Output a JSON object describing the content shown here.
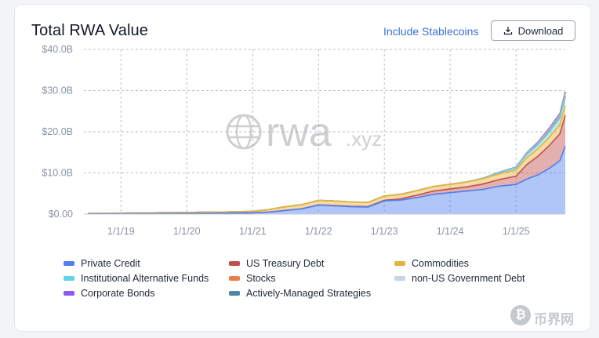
{
  "header": {
    "title": "Total RWA Value",
    "stablecoin_toggle": "Include Stablecoins",
    "download_label": "Download"
  },
  "watermark": {
    "brand": "rwa",
    "tld": ".xyz",
    "corner_badge": "₿",
    "corner_text": "币界网"
  },
  "colors": {
    "private_credit": "#4f7ef0",
    "us_treasury": "#c0504d",
    "commodities": "#e6b23c",
    "inst_alt_funds": "#5fd3ea",
    "stocks": "#ee7d4c",
    "non_us_gov": "#c9d3e6",
    "corporate_bonds": "#8a5cf6",
    "active_managed": "#4e88a6",
    "link": "#3b6fd6"
  },
  "chart_data": {
    "type": "area",
    "stacked": true,
    "title": "Total RWA Value",
    "x_ticks": [
      "1/1/19",
      "1/1/20",
      "1/1/21",
      "1/1/22",
      "1/1/23",
      "1/1/24",
      "1/1/25"
    ],
    "y_ticks": [
      "$0.00",
      "$10.0B",
      "$20.0B",
      "$30.0B",
      "$40.0B"
    ],
    "ylim": [
      0,
      40
    ],
    "y_unit": "B USD",
    "grid": true,
    "legend_position": "bottom",
    "x": [
      "2018-07-01",
      "2019-01-01",
      "2019-07-01",
      "2020-01-01",
      "2020-07-01",
      "2021-01-01",
      "2021-04-01",
      "2021-07-01",
      "2021-10-01",
      "2022-01-01",
      "2022-04-01",
      "2022-07-01",
      "2022-10-01",
      "2023-01-01",
      "2023-04-01",
      "2023-07-01",
      "2023-10-01",
      "2024-01-01",
      "2024-04-01",
      "2024-07-01",
      "2024-10-01",
      "2025-01-01",
      "2025-03-01",
      "2025-05-01",
      "2025-07-01",
      "2025-09-01",
      "2025-10-01"
    ],
    "series": [
      {
        "name": "Private Credit",
        "color_key": "private_credit",
        "values": [
          0.05,
          0.08,
          0.12,
          0.15,
          0.2,
          0.3,
          0.5,
          0.9,
          1.3,
          2.2,
          2.0,
          1.8,
          1.7,
          3.2,
          3.4,
          4.0,
          4.8,
          5.2,
          5.6,
          6.0,
          6.8,
          7.2,
          8.5,
          9.5,
          11.0,
          13.0,
          16.5
        ]
      },
      {
        "name": "US Treasury Debt",
        "color_key": "us_treasury",
        "values": [
          0,
          0,
          0,
          0,
          0,
          0,
          0,
          0,
          0,
          0.05,
          0.08,
          0.1,
          0.12,
          0.15,
          0.3,
          0.6,
          0.8,
          0.9,
          1.0,
          1.3,
          1.6,
          2.0,
          3.5,
          4.5,
          5.5,
          6.5,
          7.5
        ]
      },
      {
        "name": "Commodities",
        "color_key": "commodities",
        "values": [
          0.1,
          0.15,
          0.2,
          0.25,
          0.3,
          0.35,
          0.6,
          0.9,
          1.0,
          1.1,
          1.1,
          1.05,
          1.0,
          1.05,
          1.1,
          1.1,
          1.1,
          1.15,
          1.2,
          1.3,
          1.4,
          1.5,
          1.7,
          1.8,
          2.0,
          2.2,
          2.4
        ]
      },
      {
        "name": "Institutional Alternative Funds",
        "color_key": "inst_alt_funds",
        "values": [
          0,
          0,
          0,
          0,
          0,
          0,
          0,
          0,
          0,
          0,
          0,
          0,
          0,
          0,
          0,
          0,
          0,
          0,
          0,
          0.1,
          0.3,
          0.5,
          0.8,
          1.0,
          1.3,
          1.6,
          2.0
        ]
      },
      {
        "name": "Stocks",
        "color_key": "stocks",
        "values": [
          0,
          0,
          0,
          0,
          0,
          0,
          0,
          0,
          0,
          0,
          0,
          0,
          0,
          0,
          0,
          0,
          0,
          0,
          0,
          0,
          0,
          0.05,
          0.1,
          0.2,
          0.3,
          0.35,
          0.4
        ]
      },
      {
        "name": "non-US Government Debt",
        "color_key": "non_us_gov",
        "values": [
          0,
          0,
          0,
          0,
          0,
          0,
          0,
          0,
          0,
          0,
          0,
          0,
          0,
          0,
          0,
          0,
          0,
          0,
          0,
          0.02,
          0.05,
          0.1,
          0.15,
          0.2,
          0.25,
          0.3,
          0.35
        ]
      },
      {
        "name": "Corporate Bonds",
        "color_key": "corporate_bonds",
        "values": [
          0,
          0,
          0,
          0,
          0,
          0,
          0,
          0,
          0,
          0,
          0,
          0,
          0,
          0,
          0,
          0,
          0,
          0,
          0,
          0,
          0.05,
          0.08,
          0.1,
          0.15,
          0.2,
          0.25,
          0.3
        ]
      },
      {
        "name": "Actively-Managed Strategies",
        "color_key": "active_managed",
        "values": [
          0,
          0,
          0,
          0,
          0,
          0,
          0,
          0,
          0,
          0,
          0,
          0,
          0,
          0,
          0,
          0,
          0,
          0,
          0,
          0,
          0,
          0,
          0.05,
          0.1,
          0.15,
          0.2,
          0.25
        ]
      }
    ]
  },
  "legend": {
    "items": [
      {
        "label": "Private Credit",
        "color_key": "private_credit"
      },
      {
        "label": "US Treasury Debt",
        "color_key": "us_treasury"
      },
      {
        "label": "Commodities",
        "color_key": "commodities"
      },
      {
        "label": "Institutional Alternative Funds",
        "color_key": "inst_alt_funds"
      },
      {
        "label": "Stocks",
        "color_key": "stocks"
      },
      {
        "label": "non-US Government Debt",
        "color_key": "non_us_gov"
      },
      {
        "label": "Corporate Bonds",
        "color_key": "corporate_bonds"
      },
      {
        "label": "Actively-Managed Strategies",
        "color_key": "active_managed"
      }
    ]
  }
}
